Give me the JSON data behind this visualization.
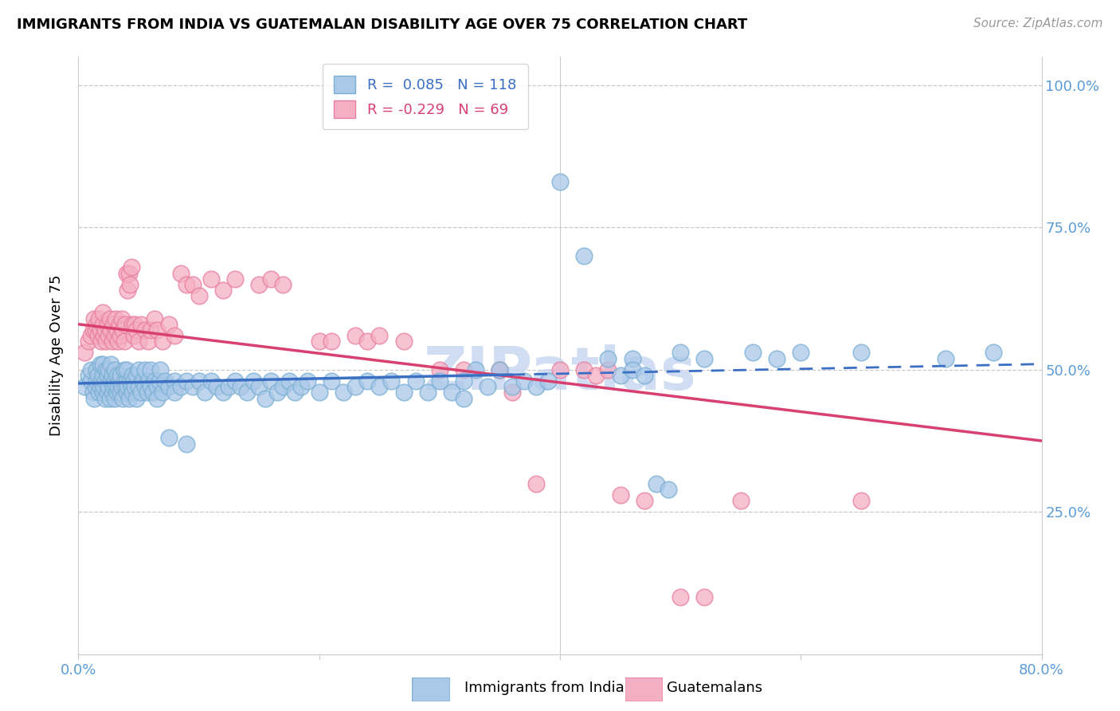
{
  "title": "IMMIGRANTS FROM INDIA VS GUATEMALAN DISABILITY AGE OVER 75 CORRELATION CHART",
  "source": "Source: ZipAtlas.com",
  "ylabel": "Disability Age Over 75",
  "xlim": [
    0.0,
    0.8
  ],
  "ylim": [
    0.0,
    1.05
  ],
  "india_color": "#aac8e8",
  "india_edge": "#7aafd4",
  "guatemala_color": "#f5afc5",
  "guatemala_edge": "#e87fa0",
  "india_line_color": "#3a6fc4",
  "guatemala_line_color": "#d84070",
  "watermark": "ZIPatlas",
  "watermark_color": "#c8d8f0",
  "right_tick_color": "#5b9bd5",
  "bottom_tick_color": "#5b9bd5",
  "india_scatter": [
    [
      0.005,
      0.47
    ],
    [
      0.008,
      0.49
    ],
    [
      0.01,
      0.48
    ],
    [
      0.01,
      0.5
    ],
    [
      0.012,
      0.46
    ],
    [
      0.013,
      0.45
    ],
    [
      0.014,
      0.47
    ],
    [
      0.015,
      0.48
    ],
    [
      0.015,
      0.5
    ],
    [
      0.016,
      0.49
    ],
    [
      0.017,
      0.46
    ],
    [
      0.018,
      0.47
    ],
    [
      0.018,
      0.51
    ],
    [
      0.019,
      0.48
    ],
    [
      0.02,
      0.46
    ],
    [
      0.02,
      0.49
    ],
    [
      0.02,
      0.51
    ],
    [
      0.021,
      0.47
    ],
    [
      0.022,
      0.45
    ],
    [
      0.022,
      0.48
    ],
    [
      0.023,
      0.5
    ],
    [
      0.024,
      0.46
    ],
    [
      0.024,
      0.49
    ],
    [
      0.025,
      0.47
    ],
    [
      0.025,
      0.5
    ],
    [
      0.026,
      0.45
    ],
    [
      0.027,
      0.48
    ],
    [
      0.027,
      0.51
    ],
    [
      0.028,
      0.46
    ],
    [
      0.028,
      0.49
    ],
    [
      0.029,
      0.47
    ],
    [
      0.03,
      0.45
    ],
    [
      0.03,
      0.48
    ],
    [
      0.03,
      0.5
    ],
    [
      0.031,
      0.47
    ],
    [
      0.032,
      0.46
    ],
    [
      0.032,
      0.49
    ],
    [
      0.033,
      0.47
    ],
    [
      0.034,
      0.48
    ],
    [
      0.035,
      0.46
    ],
    [
      0.035,
      0.49
    ],
    [
      0.036,
      0.47
    ],
    [
      0.037,
      0.45
    ],
    [
      0.038,
      0.48
    ],
    [
      0.038,
      0.5
    ],
    [
      0.039,
      0.47
    ],
    [
      0.04,
      0.46
    ],
    [
      0.04,
      0.48
    ],
    [
      0.04,
      0.5
    ],
    [
      0.041,
      0.47
    ],
    [
      0.042,
      0.45
    ],
    [
      0.043,
      0.48
    ],
    [
      0.044,
      0.47
    ],
    [
      0.045,
      0.49
    ],
    [
      0.045,
      0.46
    ],
    [
      0.046,
      0.48
    ],
    [
      0.047,
      0.47
    ],
    [
      0.048,
      0.45
    ],
    [
      0.048,
      0.49
    ],
    [
      0.05,
      0.47
    ],
    [
      0.05,
      0.5
    ],
    [
      0.052,
      0.46
    ],
    [
      0.053,
      0.48
    ],
    [
      0.055,
      0.47
    ],
    [
      0.055,
      0.5
    ],
    [
      0.057,
      0.46
    ],
    [
      0.058,
      0.48
    ],
    [
      0.06,
      0.47
    ],
    [
      0.06,
      0.5
    ],
    [
      0.062,
      0.46
    ],
    [
      0.063,
      0.48
    ],
    [
      0.065,
      0.47
    ],
    [
      0.065,
      0.45
    ],
    [
      0.067,
      0.48
    ],
    [
      0.068,
      0.5
    ],
    [
      0.07,
      0.46
    ],
    [
      0.072,
      0.48
    ],
    [
      0.075,
      0.47
    ],
    [
      0.075,
      0.38
    ],
    [
      0.08,
      0.48
    ],
    [
      0.08,
      0.46
    ],
    [
      0.085,
      0.47
    ],
    [
      0.09,
      0.48
    ],
    [
      0.09,
      0.37
    ],
    [
      0.095,
      0.47
    ],
    [
      0.1,
      0.48
    ],
    [
      0.105,
      0.46
    ],
    [
      0.11,
      0.48
    ],
    [
      0.115,
      0.47
    ],
    [
      0.12,
      0.46
    ],
    [
      0.125,
      0.47
    ],
    [
      0.13,
      0.48
    ],
    [
      0.135,
      0.47
    ],
    [
      0.14,
      0.46
    ],
    [
      0.145,
      0.48
    ],
    [
      0.15,
      0.47
    ],
    [
      0.155,
      0.45
    ],
    [
      0.16,
      0.48
    ],
    [
      0.165,
      0.46
    ],
    [
      0.17,
      0.47
    ],
    [
      0.175,
      0.48
    ],
    [
      0.18,
      0.46
    ],
    [
      0.185,
      0.47
    ],
    [
      0.19,
      0.48
    ],
    [
      0.2,
      0.46
    ],
    [
      0.21,
      0.48
    ],
    [
      0.22,
      0.46
    ],
    [
      0.23,
      0.47
    ],
    [
      0.24,
      0.48
    ],
    [
      0.25,
      0.47
    ],
    [
      0.26,
      0.48
    ],
    [
      0.27,
      0.46
    ],
    [
      0.28,
      0.48
    ],
    [
      0.29,
      0.46
    ],
    [
      0.3,
      0.48
    ],
    [
      0.31,
      0.46
    ],
    [
      0.32,
      0.48
    ],
    [
      0.32,
      0.45
    ],
    [
      0.33,
      0.5
    ],
    [
      0.34,
      0.47
    ],
    [
      0.35,
      0.5
    ],
    [
      0.36,
      0.47
    ],
    [
      0.37,
      0.48
    ],
    [
      0.38,
      0.47
    ],
    [
      0.39,
      0.48
    ],
    [
      0.4,
      0.83
    ],
    [
      0.42,
      0.7
    ],
    [
      0.44,
      0.52
    ],
    [
      0.45,
      0.49
    ],
    [
      0.46,
      0.52
    ],
    [
      0.46,
      0.5
    ],
    [
      0.47,
      0.49
    ],
    [
      0.48,
      0.3
    ],
    [
      0.49,
      0.29
    ],
    [
      0.5,
      0.53
    ],
    [
      0.52,
      0.52
    ],
    [
      0.56,
      0.53
    ],
    [
      0.58,
      0.52
    ],
    [
      0.6,
      0.53
    ],
    [
      0.65,
      0.53
    ],
    [
      0.72,
      0.52
    ],
    [
      0.76,
      0.53
    ]
  ],
  "guatemala_scatter": [
    [
      0.005,
      0.53
    ],
    [
      0.008,
      0.55
    ],
    [
      0.01,
      0.56
    ],
    [
      0.012,
      0.57
    ],
    [
      0.013,
      0.59
    ],
    [
      0.014,
      0.57
    ],
    [
      0.015,
      0.58
    ],
    [
      0.016,
      0.56
    ],
    [
      0.017,
      0.59
    ],
    [
      0.018,
      0.57
    ],
    [
      0.019,
      0.55
    ],
    [
      0.02,
      0.58
    ],
    [
      0.02,
      0.6
    ],
    [
      0.021,
      0.56
    ],
    [
      0.022,
      0.57
    ],
    [
      0.023,
      0.55
    ],
    [
      0.024,
      0.58
    ],
    [
      0.025,
      0.56
    ],
    [
      0.026,
      0.59
    ],
    [
      0.027,
      0.57
    ],
    [
      0.028,
      0.55
    ],
    [
      0.029,
      0.58
    ],
    [
      0.03,
      0.56
    ],
    [
      0.031,
      0.59
    ],
    [
      0.032,
      0.57
    ],
    [
      0.033,
      0.55
    ],
    [
      0.034,
      0.58
    ],
    [
      0.035,
      0.56
    ],
    [
      0.036,
      0.59
    ],
    [
      0.037,
      0.57
    ],
    [
      0.038,
      0.55
    ],
    [
      0.039,
      0.58
    ],
    [
      0.04,
      0.67
    ],
    [
      0.041,
      0.64
    ],
    [
      0.042,
      0.67
    ],
    [
      0.043,
      0.65
    ],
    [
      0.044,
      0.68
    ],
    [
      0.045,
      0.58
    ],
    [
      0.046,
      0.56
    ],
    [
      0.047,
      0.58
    ],
    [
      0.048,
      0.57
    ],
    [
      0.05,
      0.55
    ],
    [
      0.052,
      0.58
    ],
    [
      0.055,
      0.57
    ],
    [
      0.058,
      0.55
    ],
    [
      0.06,
      0.57
    ],
    [
      0.063,
      0.59
    ],
    [
      0.065,
      0.57
    ],
    [
      0.07,
      0.55
    ],
    [
      0.075,
      0.58
    ],
    [
      0.08,
      0.56
    ],
    [
      0.085,
      0.67
    ],
    [
      0.09,
      0.65
    ],
    [
      0.095,
      0.65
    ],
    [
      0.1,
      0.63
    ],
    [
      0.11,
      0.66
    ],
    [
      0.12,
      0.64
    ],
    [
      0.13,
      0.66
    ],
    [
      0.15,
      0.65
    ],
    [
      0.16,
      0.66
    ],
    [
      0.17,
      0.65
    ],
    [
      0.2,
      0.55
    ],
    [
      0.21,
      0.55
    ],
    [
      0.23,
      0.56
    ],
    [
      0.24,
      0.55
    ],
    [
      0.25,
      0.56
    ],
    [
      0.27,
      0.55
    ],
    [
      0.3,
      0.5
    ],
    [
      0.32,
      0.5
    ],
    [
      0.35,
      0.5
    ],
    [
      0.36,
      0.46
    ],
    [
      0.38,
      0.3
    ],
    [
      0.4,
      0.5
    ],
    [
      0.42,
      0.5
    ],
    [
      0.43,
      0.49
    ],
    [
      0.44,
      0.5
    ],
    [
      0.45,
      0.28
    ],
    [
      0.47,
      0.27
    ],
    [
      0.5,
      0.1
    ],
    [
      0.52,
      0.1
    ],
    [
      0.55,
      0.27
    ],
    [
      0.65,
      0.27
    ]
  ]
}
